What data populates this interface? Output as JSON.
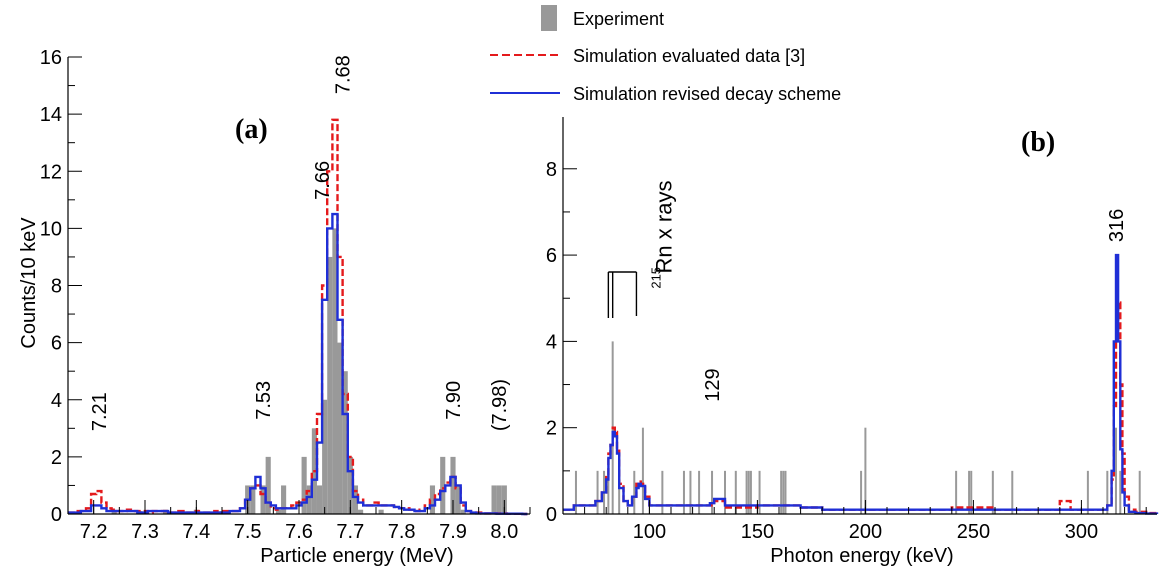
{
  "legend": {
    "placement": "top-center",
    "entries": [
      {
        "label": "Experiment",
        "style": "filled-gray",
        "color": "#999999"
      },
      {
        "label": "Simulation evaluated data [3]",
        "style": "dashed-line",
        "color": "#e41a1c"
      },
      {
        "label": "Simulation revised decay scheme",
        "style": "solid-line",
        "color": "#1f2fd6"
      }
    ]
  },
  "colors": {
    "experiment": "#999999",
    "evaluated": "#e41a1c",
    "revised": "#1f2fd6",
    "axis": "#000000"
  },
  "chart_data": [
    {
      "panel_label": "(a)",
      "type": "histogram",
      "xlabel": "Particle energy (MeV)",
      "ylabel": "Counts/10 keV",
      "xlim": [
        7.15,
        8.05
      ],
      "ylim": [
        0,
        16
      ],
      "xticks": [
        7.2,
        7.3,
        7.4,
        7.5,
        7.6,
        7.7,
        7.8,
        7.9,
        8.0
      ],
      "xtick_labels": [
        "7.2",
        "7.3",
        "7.4",
        "7.5",
        "7.6",
        "7.7",
        "7.8",
        "7.9",
        "8.0"
      ],
      "yticks": [
        0,
        2,
        4,
        6,
        8,
        10,
        12,
        14,
        16
      ],
      "ytick_labels": [
        "0",
        "2",
        "4",
        "6",
        "8",
        "10",
        "12",
        "14",
        "16"
      ],
      "bin_width": 0.01,
      "experiment": [
        [
          7.24,
          0.15
        ],
        [
          7.29,
          0.1
        ],
        [
          7.34,
          0.15
        ],
        [
          7.37,
          0.1
        ],
        [
          7.4,
          0.15
        ],
        [
          7.45,
          0.1
        ],
        [
          7.5,
          1.0
        ],
        [
          7.51,
          1.0
        ],
        [
          7.53,
          1.0
        ],
        [
          7.54,
          2.0
        ],
        [
          7.56,
          0.15
        ],
        [
          7.57,
          1.0
        ],
        [
          7.61,
          2.0
        ],
        [
          7.62,
          1.0
        ],
        [
          7.63,
          3.0
        ],
        [
          7.64,
          1.0
        ],
        [
          7.65,
          4.0
        ],
        [
          7.66,
          9.0
        ],
        [
          7.67,
          10.0
        ],
        [
          7.68,
          6.0
        ],
        [
          7.69,
          5.0
        ],
        [
          7.7,
          2.0
        ],
        [
          7.71,
          1.0
        ],
        [
          7.72,
          0.15
        ],
        [
          7.76,
          0.15
        ],
        [
          7.86,
          1.0
        ],
        [
          7.88,
          2.0
        ],
        [
          7.9,
          2.0
        ],
        [
          7.91,
          1.0
        ],
        [
          7.92,
          0.15
        ],
        [
          7.98,
          1.0
        ],
        [
          7.99,
          1.0
        ],
        [
          8.0,
          1.0
        ]
      ],
      "series": [
        {
          "name": "Simulation evaluated data [3]",
          "style": "dashed",
          "x": [
            7.15,
            7.16,
            7.17,
            7.18,
            7.19,
            7.2,
            7.21,
            7.22,
            7.23,
            7.24,
            7.25,
            7.26,
            7.27,
            7.28,
            7.29,
            7.3,
            7.31,
            7.32,
            7.33,
            7.34,
            7.35,
            7.36,
            7.37,
            7.38,
            7.39,
            7.4,
            7.41,
            7.42,
            7.43,
            7.44,
            7.45,
            7.46,
            7.47,
            7.48,
            7.49,
            7.5,
            7.51,
            7.52,
            7.53,
            7.54,
            7.55,
            7.56,
            7.57,
            7.58,
            7.59,
            7.6,
            7.61,
            7.62,
            7.63,
            7.64,
            7.65,
            7.66,
            7.67,
            7.68,
            7.69,
            7.7,
            7.71,
            7.72,
            7.73,
            7.74,
            7.75,
            7.76,
            7.77,
            7.78,
            7.79,
            7.8,
            7.81,
            7.82,
            7.83,
            7.84,
            7.85,
            7.86,
            7.87,
            7.88,
            7.89,
            7.9,
            7.91,
            7.92,
            7.93,
            7.94,
            7.95,
            7.96,
            7.97,
            7.98,
            7.99,
            8.0,
            8.01,
            8.02,
            8.03,
            8.04
          ],
          "y": [
            0.05,
            0.05,
            0.1,
            0.1,
            0.2,
            0.7,
            0.8,
            0.4,
            0.2,
            0.15,
            0.1,
            0.1,
            0.15,
            0.1,
            0.1,
            0.1,
            0.05,
            0.1,
            0.1,
            0.1,
            0.05,
            0.05,
            0.1,
            0.05,
            0.05,
            0.1,
            0.05,
            0.05,
            0.05,
            0.1,
            0.1,
            0.1,
            0.1,
            0.1,
            0.2,
            0.5,
            0.9,
            1.0,
            0.7,
            0.4,
            0.2,
            0.15,
            0.2,
            0.2,
            0.3,
            0.4,
            0.5,
            0.8,
            1.5,
            3.5,
            8.0,
            12.0,
            13.8,
            9.0,
            4.2,
            2.0,
            0.8,
            0.5,
            0.3,
            0.3,
            0.4,
            0.3,
            0.3,
            0.3,
            0.25,
            0.2,
            0.2,
            0.15,
            0.1,
            0.15,
            0.3,
            0.5,
            0.7,
            0.9,
            1.1,
            1.3,
            0.9,
            0.3,
            0.1,
            0.05,
            0.05,
            0.02,
            0.02,
            0.02,
            0.02,
            0.02,
            0.01,
            0.01,
            0.01,
            0.0
          ]
        },
        {
          "name": "Simulation revised decay scheme",
          "style": "solid",
          "x": [
            7.15,
            7.16,
            7.17,
            7.18,
            7.19,
            7.2,
            7.21,
            7.22,
            7.23,
            7.24,
            7.25,
            7.26,
            7.27,
            7.28,
            7.29,
            7.3,
            7.31,
            7.32,
            7.33,
            7.34,
            7.35,
            7.36,
            7.37,
            7.38,
            7.39,
            7.4,
            7.41,
            7.42,
            7.43,
            7.44,
            7.45,
            7.46,
            7.47,
            7.48,
            7.49,
            7.5,
            7.51,
            7.52,
            7.53,
            7.54,
            7.55,
            7.56,
            7.57,
            7.58,
            7.59,
            7.6,
            7.61,
            7.62,
            7.63,
            7.64,
            7.65,
            7.66,
            7.67,
            7.68,
            7.69,
            7.7,
            7.71,
            7.72,
            7.73,
            7.74,
            7.75,
            7.76,
            7.77,
            7.78,
            7.79,
            7.8,
            7.81,
            7.82,
            7.83,
            7.84,
            7.85,
            7.86,
            7.87,
            7.88,
            7.89,
            7.9,
            7.91,
            7.92,
            7.93,
            7.94,
            7.95,
            7.96,
            7.97,
            7.98,
            7.99,
            8.0,
            8.01,
            8.02,
            8.03,
            8.04
          ],
          "y": [
            0.05,
            0.05,
            0.05,
            0.1,
            0.1,
            0.3,
            0.3,
            0.2,
            0.1,
            0.1,
            0.1,
            0.1,
            0.1,
            0.1,
            0.05,
            0.05,
            0.1,
            0.1,
            0.1,
            0.1,
            0.05,
            0.05,
            0.05,
            0.05,
            0.05,
            0.05,
            0.05,
            0.05,
            0.05,
            0.05,
            0.05,
            0.05,
            0.1,
            0.1,
            0.2,
            0.5,
            0.9,
            1.3,
            0.9,
            0.4,
            0.3,
            0.2,
            0.2,
            0.2,
            0.2,
            0.3,
            0.4,
            0.6,
            1.2,
            2.5,
            7.5,
            10.0,
            10.5,
            6.8,
            3.5,
            1.5,
            0.6,
            0.4,
            0.3,
            0.3,
            0.3,
            0.3,
            0.3,
            0.3,
            0.25,
            0.2,
            0.15,
            0.15,
            0.1,
            0.1,
            0.2,
            0.3,
            0.5,
            0.8,
            1.0,
            1.3,
            1.0,
            0.4,
            0.1,
            0.05,
            0.02,
            0.02,
            0.02,
            0.02,
            0.01,
            0.01,
            0.01,
            0.01,
            0.01,
            0.0
          ]
        }
      ],
      "annotations": [
        {
          "text": "7.21",
          "x": 7.21,
          "y": 2.9
        },
        {
          "text": "7.53",
          "x": 7.53,
          "y": 3.3
        },
        {
          "text": "7.66",
          "x": 7.645,
          "y": 11.0
        },
        {
          "text": "7.68",
          "x": 7.685,
          "y": 14.7
        },
        {
          "text": "7.90",
          "x": 7.9,
          "y": 3.3
        },
        {
          "text": "(7.98)",
          "x": 7.99,
          "y": 2.9
        }
      ]
    },
    {
      "panel_label": "(b)",
      "type": "histogram",
      "xlabel": "Photon energy (keV)",
      "ylabel": "",
      "xlim": [
        60,
        335
      ],
      "ylim": [
        0,
        9.2
      ],
      "xticks": [
        100,
        150,
        200,
        250,
        300
      ],
      "xtick_labels": [
        "100",
        "150",
        "200",
        "250",
        "300"
      ],
      "yticks": [
        0,
        2,
        4,
        6,
        8
      ],
      "ytick_labels": [
        "0",
        "2",
        "4",
        "6",
        "8"
      ],
      "experiment_lines": [
        [
          66,
          1
        ],
        [
          76,
          1
        ],
        [
          79,
          1
        ],
        [
          81,
          1
        ],
        [
          83,
          4
        ],
        [
          86,
          1
        ],
        [
          93,
          1
        ],
        [
          97,
          2
        ],
        [
          106,
          1
        ],
        [
          116,
          1
        ],
        [
          119,
          1
        ],
        [
          123,
          1
        ],
        [
          129,
          1
        ],
        [
          135,
          1
        ],
        [
          140,
          1
        ],
        [
          145,
          1
        ],
        [
          146,
          1
        ],
        [
          147,
          1
        ],
        [
          151,
          1
        ],
        [
          161,
          1
        ],
        [
          162,
          1
        ],
        [
          163,
          1
        ],
        [
          198,
          1
        ],
        [
          200,
          2
        ],
        [
          242,
          1
        ],
        [
          248,
          1
        ],
        [
          249,
          1
        ],
        [
          259,
          1
        ],
        [
          268,
          1
        ],
        [
          303,
          1
        ],
        [
          312,
          1
        ],
        [
          316,
          2
        ],
        [
          318,
          1
        ],
        [
          327,
          1
        ]
      ],
      "series": [
        {
          "name": "Simulation evaluated data [3]",
          "style": "dashed",
          "x": [
            60,
            65,
            70,
            75,
            78,
            80,
            81,
            82,
            83,
            84,
            85,
            86,
            88,
            90,
            92,
            94,
            95,
            96,
            98,
            100,
            105,
            110,
            120,
            128,
            130,
            135,
            140,
            150,
            160,
            170,
            180,
            190,
            200,
            210,
            220,
            230,
            240,
            250,
            260,
            270,
            280,
            285,
            290,
            295,
            300,
            305,
            310,
            312,
            314,
            315,
            316,
            317,
            318,
            319,
            320,
            322,
            325,
            330,
            335
          ],
          "y": [
            0.1,
            0.2,
            0.2,
            0.3,
            0.5,
            0.9,
            1.4,
            1.6,
            2.0,
            1.9,
            1.5,
            0.7,
            0.3,
            0.2,
            0.4,
            0.7,
            0.75,
            0.7,
            0.4,
            0.2,
            0.2,
            0.2,
            0.2,
            0.2,
            0.3,
            0.15,
            0.15,
            0.2,
            0.2,
            0.15,
            0.1,
            0.1,
            0.1,
            0.1,
            0.1,
            0.1,
            0.15,
            0.15,
            0.1,
            0.1,
            0.1,
            0.1,
            0.3,
            0.1,
            0.1,
            0.1,
            0.1,
            0.2,
            0.8,
            2.5,
            4.0,
            4.9,
            3.0,
            1.4,
            0.4,
            0.1,
            0.05,
            0.02,
            0.0
          ]
        },
        {
          "name": "Simulation revised decay scheme",
          "style": "solid",
          "x": [
            60,
            65,
            70,
            75,
            78,
            80,
            81,
            82,
            83,
            84,
            85,
            86,
            88,
            90,
            92,
            94,
            95,
            96,
            98,
            100,
            105,
            110,
            120,
            128,
            130,
            135,
            140,
            150,
            160,
            170,
            180,
            190,
            200,
            210,
            220,
            230,
            240,
            250,
            260,
            270,
            280,
            285,
            290,
            295,
            300,
            305,
            310,
            312,
            314,
            315,
            316,
            317,
            318,
            319,
            320,
            322,
            325,
            330,
            335
          ],
          "y": [
            0.1,
            0.2,
            0.2,
            0.3,
            0.5,
            0.8,
            1.3,
            1.6,
            1.9,
            1.8,
            1.4,
            0.6,
            0.3,
            0.2,
            0.4,
            0.6,
            0.7,
            0.65,
            0.35,
            0.2,
            0.2,
            0.2,
            0.2,
            0.25,
            0.35,
            0.2,
            0.2,
            0.2,
            0.2,
            0.15,
            0.1,
            0.1,
            0.1,
            0.1,
            0.1,
            0.1,
            0.1,
            0.1,
            0.1,
            0.1,
            0.1,
            0.1,
            0.1,
            0.1,
            0.1,
            0.1,
            0.1,
            0.2,
            1.0,
            4.0,
            6.0,
            4.0,
            1.5,
            0.5,
            0.2,
            0.05,
            0.02,
            0.01,
            0.0
          ]
        }
      ],
      "annotations": [
        {
          "text": "129",
          "x": 129,
          "y": 2.6
        },
        {
          "text": "316",
          "x": 316,
          "y": 6.3
        },
        {
          "text": "215",
          "x": 83,
          "y": 5.5
        },
        {
          "text": "Rn x rays",
          "x": 83,
          "y": 6.2
        }
      ],
      "bracket_lines": [
        81,
        83,
        94
      ]
    }
  ]
}
